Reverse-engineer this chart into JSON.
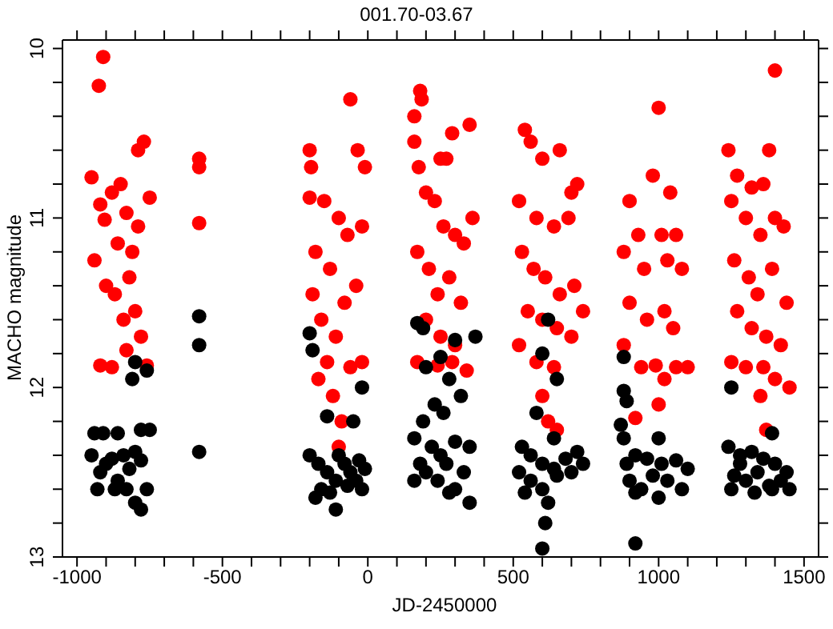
{
  "chart_data": {
    "type": "scatter",
    "title": "001.70-03.67",
    "xlabel": "JD-2450000",
    "ylabel": "MACHO magnitude",
    "xlim": [
      -1050,
      1550
    ],
    "xticks": [
      -1000,
      -500,
      0,
      500,
      1000,
      1500,
      {
        "value": -900,
        "label": null
      },
      {
        "value": -800,
        "label": null
      },
      {
        "value": -700,
        "label": null
      },
      {
        "value": -600,
        "label": null
      },
      {
        "value": -400,
        "label": null
      },
      {
        "value": -300,
        "label": null
      },
      {
        "value": -200,
        "label": null
      },
      {
        "value": -100,
        "label": null
      },
      {
        "value": 100,
        "label": null
      },
      {
        "value": 200,
        "label": null
      },
      {
        "value": 300,
        "label": null
      },
      {
        "value": 400,
        "label": null
      },
      {
        "value": 600,
        "label": null
      },
      {
        "value": 700,
        "label": null
      },
      {
        "value": 800,
        "label": null
      },
      {
        "value": 900,
        "label": null
      },
      {
        "value": 1100,
        "label": null
      },
      {
        "value": 1200,
        "label": null
      },
      {
        "value": 1300,
        "label": null
      },
      {
        "value": 1400,
        "label": null
      }
    ],
    "ylim": [
      13,
      9.95
    ],
    "yticks": [
      10,
      11,
      12,
      13,
      {
        "value": 10.2,
        "label": null
      },
      {
        "value": 10.4,
        "label": null
      },
      {
        "value": 10.6,
        "label": null
      },
      {
        "value": 10.8,
        "label": null
      },
      {
        "value": 11.2,
        "label": null
      },
      {
        "value": 11.4,
        "label": null
      },
      {
        "value": 11.6,
        "label": null
      },
      {
        "value": 11.8,
        "label": null
      },
      {
        "value": 12.2,
        "label": null
      },
      {
        "value": 12.4,
        "label": null
      },
      {
        "value": 12.6,
        "label": null
      },
      {
        "value": 12.8,
        "label": null
      }
    ],
    "legend": false,
    "marker": "circle",
    "series": [
      {
        "color": "#ff0000",
        "x": [
          -910,
          -925,
          -950,
          -920,
          -905,
          -880,
          -860,
          -830,
          -810,
          -790,
          -770,
          -750,
          -940,
          -900,
          -870,
          -840,
          -820,
          -800,
          -780,
          -920,
          -880,
          -830,
          -760,
          -850,
          -790,
          -580,
          -580,
          -580,
          -200,
          -195,
          -200,
          -60,
          -35,
          -10,
          -150,
          -100,
          -70,
          -20,
          -180,
          -130,
          -80,
          -40,
          -160,
          -110,
          -60,
          -20,
          -170,
          -120,
          -90,
          -100,
          -140,
          -190,
          180,
          185,
          160,
          250,
          270,
          290,
          350,
          160,
          175,
          200,
          230,
          260,
          300,
          330,
          360,
          170,
          210,
          240,
          280,
          320,
          200,
          250,
          300,
          170,
          240,
          290,
          340,
          540,
          560,
          600,
          660,
          700,
          720,
          520,
          580,
          640,
          690,
          530,
          570,
          610,
          660,
          710,
          550,
          600,
          650,
          700,
          520,
          580,
          640,
          600,
          620,
          650,
          740,
          1000,
          980,
          900,
          1040,
          930,
          1010,
          1060,
          880,
          950,
          1030,
          1080,
          900,
          960,
          1020,
          1050,
          880,
          940,
          990,
          1060,
          1100,
          1000,
          920,
          1020,
          1400,
          1240,
          1380,
          1270,
          1320,
          1360,
          1250,
          1300,
          1350,
          1400,
          1430,
          1260,
          1310,
          1340,
          1390,
          1440,
          1270,
          1320,
          1370,
          1420,
          1250,
          1300,
          1360,
          1400,
          1350,
          1370,
          1450
        ],
        "values": [
          10.05,
          10.22,
          10.76,
          10.92,
          11.01,
          10.85,
          11.15,
          10.97,
          11.2,
          10.6,
          10.55,
          10.88,
          11.25,
          11.4,
          11.45,
          11.6,
          11.35,
          11.55,
          11.7,
          11.87,
          11.88,
          11.78,
          11.87,
          10.8,
          11.05,
          10.65,
          10.7,
          11.03,
          10.6,
          10.7,
          10.88,
          10.3,
          10.6,
          10.7,
          10.9,
          11.0,
          11.1,
          11.05,
          11.2,
          11.3,
          11.5,
          11.4,
          11.6,
          11.7,
          11.88,
          11.85,
          11.95,
          12.05,
          12.2,
          12.35,
          11.85,
          11.45,
          10.25,
          10.3,
          10.4,
          10.65,
          10.65,
          10.5,
          10.45,
          10.55,
          10.7,
          10.85,
          10.9,
          11.05,
          11.1,
          11.15,
          11.0,
          11.2,
          11.3,
          11.45,
          11.35,
          11.5,
          11.6,
          11.7,
          11.75,
          11.85,
          11.87,
          11.85,
          11.9,
          10.48,
          10.55,
          10.65,
          10.6,
          10.85,
          10.8,
          10.9,
          11.0,
          11.05,
          11.0,
          11.2,
          11.3,
          11.35,
          11.45,
          11.4,
          11.55,
          11.6,
          11.65,
          11.7,
          11.75,
          11.85,
          11.88,
          12.05,
          12.2,
          12.25,
          11.55,
          10.35,
          10.75,
          10.9,
          10.85,
          11.1,
          11.1,
          11.1,
          11.2,
          11.3,
          11.25,
          11.3,
          11.5,
          11.6,
          11.55,
          11.65,
          11.75,
          11.88,
          11.87,
          11.88,
          11.88,
          12.1,
          12.18,
          11.95,
          10.13,
          10.6,
          10.6,
          10.75,
          10.82,
          10.8,
          10.9,
          11.0,
          11.1,
          11.0,
          11.05,
          11.25,
          11.35,
          11.45,
          11.3,
          11.5,
          11.55,
          11.65,
          11.7,
          11.75,
          11.85,
          11.88,
          11.88,
          11.95,
          12.05,
          12.25,
          12.0
        ]
      },
      {
        "color": "#000000",
        "x": [
          -940,
          -910,
          -860,
          -780,
          -750,
          -950,
          -920,
          -900,
          -880,
          -860,
          -840,
          -820,
          -800,
          -780,
          -930,
          -870,
          -830,
          -800,
          -780,
          -760,
          -810,
          -800,
          -760,
          -580,
          -580,
          -580,
          -200,
          -190,
          -20,
          -140,
          -50,
          -200,
          -170,
          -140,
          -110,
          -80,
          -60,
          -30,
          -10,
          -180,
          -130,
          -110,
          -70,
          -40,
          -160,
          -100,
          -20,
          170,
          190,
          300,
          370,
          250,
          200,
          280,
          320,
          230,
          260,
          190,
          160,
          220,
          250,
          300,
          350,
          180,
          270,
          330,
          160,
          240,
          300,
          350,
          200,
          280,
          620,
          600,
          650,
          580,
          640,
          530,
          560,
          600,
          640,
          680,
          720,
          520,
          560,
          600,
          650,
          700,
          740,
          540,
          620,
          610,
          600,
          880,
          880,
          890,
          870,
          880,
          1000,
          890,
          920,
          960,
          1010,
          1060,
          1100,
          900,
          940,
          980,
          1030,
          1080,
          920,
          1000,
          920,
          1250,
          1390,
          1240,
          1280,
          1320,
          1360,
          1400,
          1440,
          1260,
          1300,
          1340,
          1380,
          1420,
          1250,
          1330,
          1390,
          1450,
          1280
        ],
        "values": [
          12.27,
          12.27,
          12.27,
          12.25,
          12.25,
          12.4,
          12.5,
          12.45,
          12.42,
          12.55,
          12.4,
          12.48,
          12.38,
          12.43,
          12.6,
          12.6,
          12.6,
          12.68,
          12.72,
          12.6,
          11.95,
          11.85,
          11.9,
          11.58,
          11.75,
          12.38,
          11.68,
          11.78,
          12.0,
          12.17,
          12.2,
          12.4,
          12.45,
          12.5,
          12.55,
          12.45,
          12.5,
          12.43,
          12.48,
          12.65,
          12.62,
          12.72,
          12.58,
          12.55,
          12.6,
          12.4,
          12.6,
          11.62,
          11.65,
          11.72,
          11.7,
          11.82,
          11.88,
          11.95,
          12.05,
          12.1,
          12.15,
          12.2,
          12.3,
          12.35,
          12.4,
          12.32,
          12.35,
          12.45,
          12.45,
          12.5,
          12.55,
          12.55,
          12.6,
          12.68,
          12.5,
          12.62,
          11.6,
          11.8,
          11.95,
          12.15,
          12.3,
          12.35,
          12.4,
          12.45,
          12.48,
          12.42,
          12.38,
          12.5,
          12.55,
          12.6,
          12.52,
          12.5,
          12.45,
          12.62,
          12.68,
          12.8,
          12.95,
          11.82,
          12.02,
          12.08,
          12.22,
          12.3,
          12.3,
          12.45,
          12.4,
          12.42,
          12.45,
          12.43,
          12.48,
          12.55,
          12.6,
          12.52,
          12.55,
          12.6,
          12.62,
          12.65,
          12.92,
          12.0,
          12.27,
          12.35,
          12.4,
          12.38,
          12.42,
          12.45,
          12.5,
          12.52,
          12.55,
          12.5,
          12.58,
          12.55,
          12.6,
          12.62,
          12.6,
          12.6,
          12.45
        ]
      }
    ]
  }
}
